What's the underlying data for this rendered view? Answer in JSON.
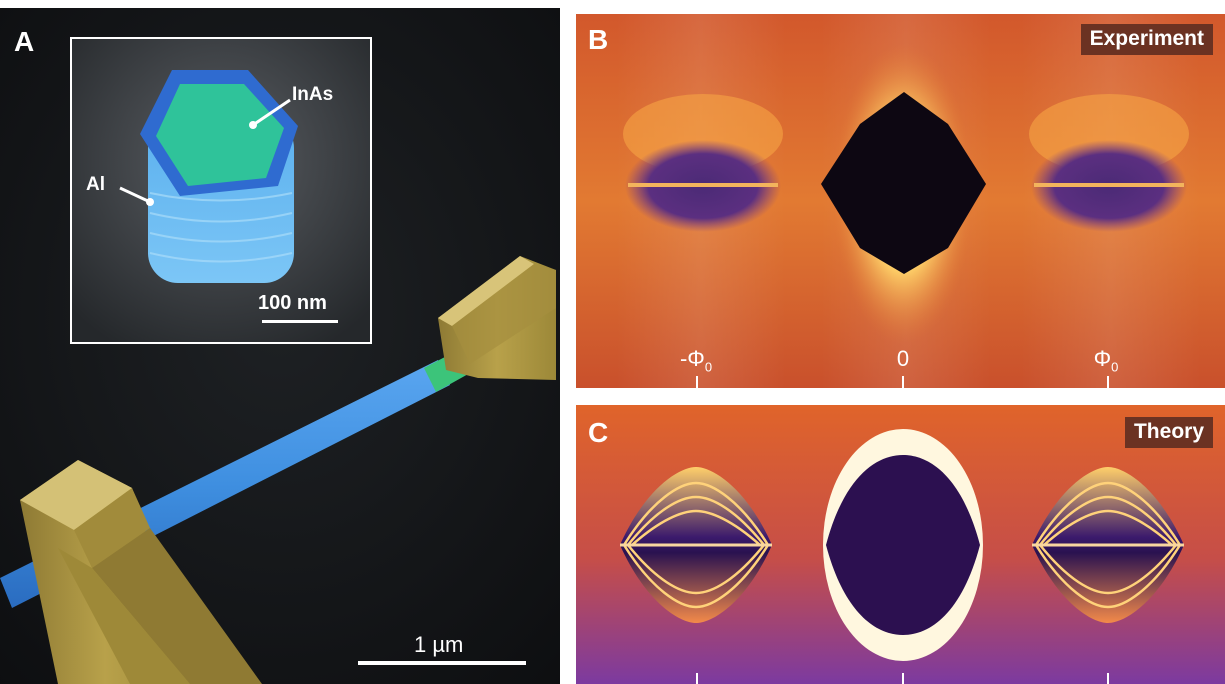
{
  "panelA": {
    "label": "A",
    "inset": {
      "label_inas": "InAs",
      "label_al": "Al",
      "scalebar": "100 nm"
    },
    "scalebar": "1 µm"
  },
  "panelB": {
    "label": "B",
    "tag": "Experiment",
    "ticks": [
      "-Φ",
      "0",
      "Φ"
    ],
    "subscript": "0"
  },
  "panelC": {
    "label": "C",
    "tag": "Theory"
  },
  "colors": {
    "nanowire": "#3f8fe0",
    "junction": "#3cc47a",
    "contact": "#b8a14a",
    "background_hot": "#e06a2a",
    "dark": "#1a0d2e"
  }
}
